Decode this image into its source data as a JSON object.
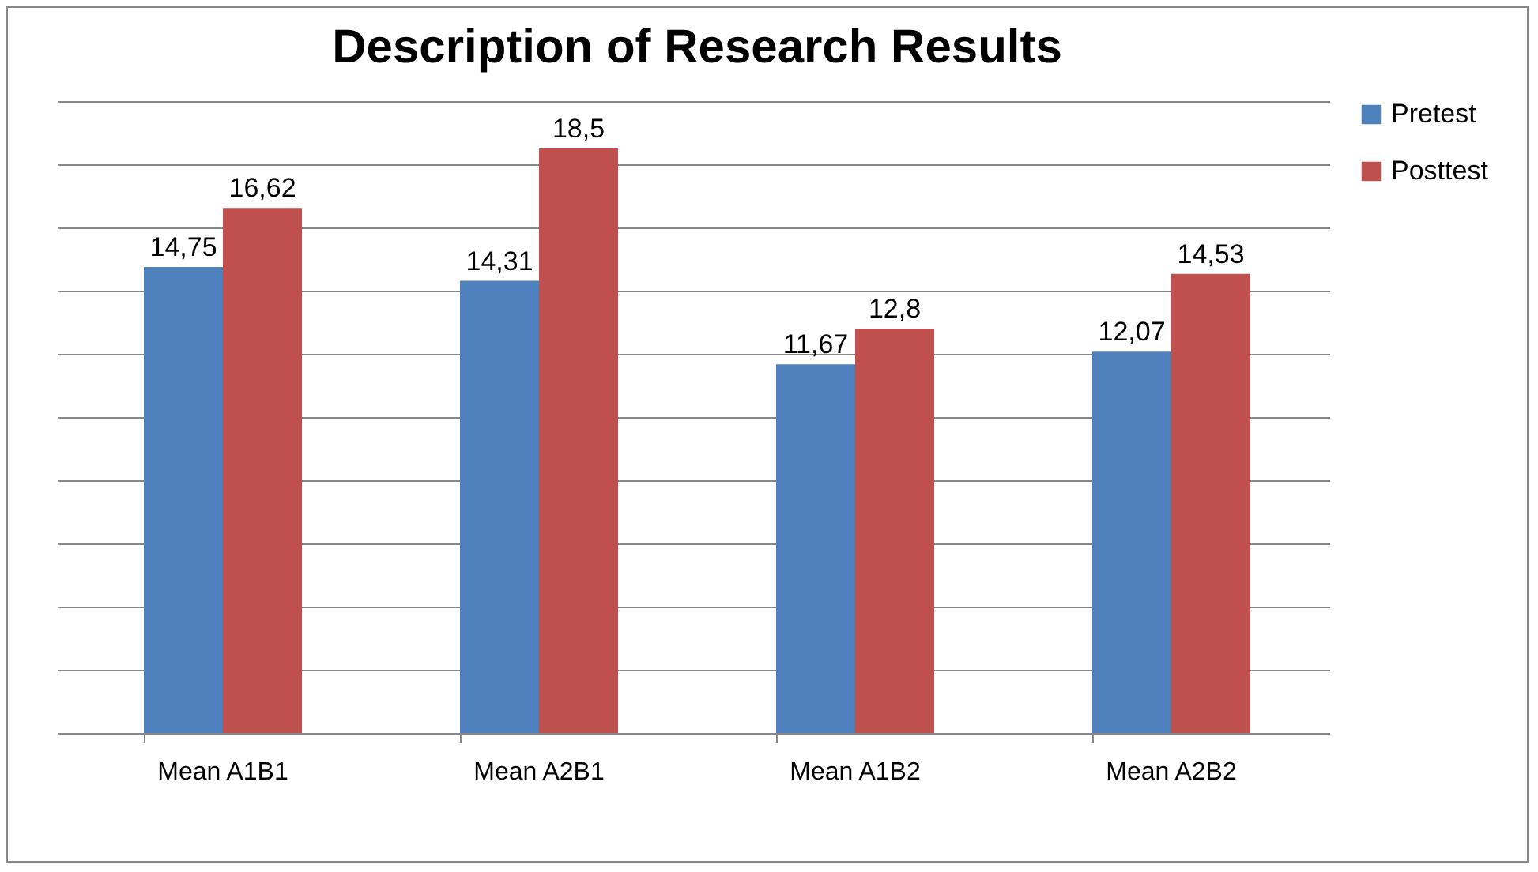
{
  "chart_data": {
    "type": "bar",
    "title": "Description of Research Results",
    "categories": [
      "Mean A1B1",
      "Mean A2B1",
      "Mean A1B2",
      "Mean A2B2"
    ],
    "series": [
      {
        "name": "Pretest",
        "color": "#4f81bd",
        "values": [
          14.75,
          14.31,
          11.67,
          12.07
        ],
        "value_labels": [
          "14,75",
          "14,31",
          "11,67",
          "12,07"
        ]
      },
      {
        "name": "Posttest",
        "color": "#c0504d",
        "values": [
          16.62,
          18.5,
          12.8,
          14.53
        ],
        "value_labels": [
          "16,62",
          "18,5",
          "12,8",
          "14,53"
        ]
      }
    ],
    "ylim": [
      0,
      20
    ],
    "yticks": [
      {
        "value": 0,
        "label": null
      },
      {
        "value": 2,
        "label": null
      },
      {
        "value": 4,
        "label": null
      },
      {
        "value": 6,
        "label": null
      },
      {
        "value": 8,
        "label": null
      },
      {
        "value": 10,
        "label": null
      },
      {
        "value": 12,
        "label": null
      },
      {
        "value": 14,
        "label": null
      },
      {
        "value": 16,
        "label": null
      },
      {
        "value": 18,
        "label": null
      },
      {
        "value": 20,
        "label": null
      }
    ],
    "tick_labels": "x",
    "grid": "y",
    "legend": "right"
  }
}
